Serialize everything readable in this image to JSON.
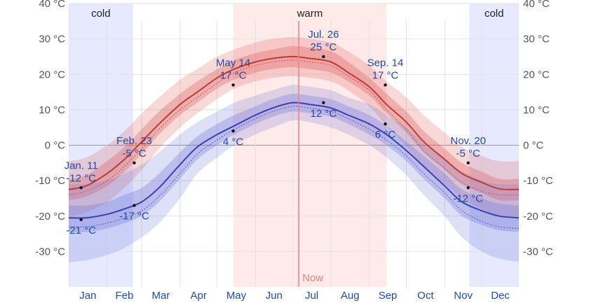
{
  "chart_data": {
    "type": "area",
    "title": "",
    "xlabel": "",
    "ylabel": "",
    "ylim": [
      -40,
      40
    ],
    "y_ticks": [
      -30,
      -20,
      -10,
      0,
      10,
      20,
      30,
      40
    ],
    "y_unit": "°C",
    "months": [
      "Jan",
      "Feb",
      "Mar",
      "Apr",
      "May",
      "Jun",
      "Jul",
      "Aug",
      "Sep",
      "Oct",
      "Nov",
      "Dec"
    ],
    "seasons": [
      {
        "label": "cold",
        "start_day": 1,
        "end_day": 53,
        "color": "#e6e9ff"
      },
      {
        "label": "warm",
        "start_day": 134,
        "end_day": 258,
        "color": "#ffeaea"
      },
      {
        "label": "cold",
        "start_day": 325,
        "end_day": 365,
        "color": "#e6e9ff"
      }
    ],
    "now": {
      "label": "Now",
      "day": 187,
      "color": "#f08080"
    },
    "x_days": [
      1,
      15,
      32,
      46,
      60,
      74,
      91,
      105,
      121,
      135,
      152,
      166,
      182,
      196,
      213,
      227,
      244,
      258,
      274,
      288,
      305,
      319,
      335,
      349,
      365
    ],
    "series": [
      {
        "key": "high",
        "line_color": "#c0393b",
        "band_color": "#d9534f",
        "mean": [
          -12.5,
          -11.5,
          -8,
          -4,
          1,
          6,
          11.5,
          15,
          19,
          21.5,
          23.5,
          24.5,
          25,
          24.5,
          23.5,
          20.5,
          16.5,
          11.5,
          6.5,
          1,
          -4,
          -8,
          -10.5,
          -12.3,
          -12.5
        ],
        "p25": [
          -15.5,
          -14.5,
          -11.5,
          -7.5,
          -2.5,
          3,
          8.5,
          12,
          16,
          18.5,
          20.5,
          21.5,
          22,
          21.5,
          20.5,
          18,
          14,
          9,
          3.5,
          -2,
          -7,
          -11,
          -13.5,
          -15.5,
          -15.5
        ],
        "p75": [
          -9.5,
          -8.5,
          -4.5,
          -0.5,
          4.5,
          9.5,
          14.5,
          18,
          21.5,
          24,
          26,
          27,
          28,
          27.5,
          26.5,
          23.5,
          19,
          14.5,
          9.5,
          4,
          -1,
          -5,
          -7.5,
          -9.5,
          -9.5
        ],
        "p10": [
          -20,
          -19,
          -16,
          -12,
          -7,
          -1,
          5,
          9,
          13,
          16,
          18,
          19,
          19.5,
          19,
          18,
          15.5,
          11,
          5.5,
          -0.5,
          -6,
          -11,
          -15,
          -18,
          -20,
          -20
        ],
        "p90": [
          -4.5,
          -3.5,
          0,
          4,
          9,
          13.5,
          18.5,
          21.5,
          25,
          27,
          29,
          30,
          30.5,
          30,
          29,
          26.5,
          22.5,
          18,
          13.5,
          8.5,
          3.5,
          -0.5,
          -3,
          -4.5,
          -4.5
        ],
        "dotted": [
          -14,
          -13,
          -10,
          -6,
          -1,
          4.5,
          10,
          13.5,
          17.5,
          20.5,
          22.5,
          23.5,
          24,
          23.5,
          22.5,
          19.5,
          15.5,
          10,
          4.5,
          -1.5,
          -6.5,
          -10.5,
          -13,
          -14,
          -14
        ]
      },
      {
        "key": "low",
        "line_color": "#3b3fb6",
        "band_color": "#6a72d6",
        "mean": [
          -20.5,
          -20.5,
          -19.5,
          -18,
          -16,
          -12,
          -5.5,
          -0.5,
          3,
          5.5,
          8.5,
          10.5,
          12,
          11.5,
          10.5,
          8.5,
          6,
          3,
          -1.5,
          -6,
          -11.5,
          -16,
          -18.5,
          -20,
          -20.5
        ],
        "p25": [
          -24.5,
          -24.5,
          -23.5,
          -22,
          -20,
          -16,
          -9.5,
          -4,
          0,
          3,
          6,
          8,
          9.5,
          9,
          8,
          6,
          3,
          0,
          -4.5,
          -9.5,
          -15,
          -20,
          -22.5,
          -24,
          -24.5
        ],
        "p75": [
          -17,
          -17,
          -16,
          -14,
          -12,
          -8,
          -2,
          2.5,
          6,
          8.5,
          11,
          13,
          14.5,
          14,
          13,
          11,
          8.5,
          5.5,
          1,
          -3,
          -8,
          -12.5,
          -15,
          -16.5,
          -17
        ],
        "p10": [
          -33,
          -32.5,
          -31,
          -29,
          -26,
          -22,
          -15,
          -8,
          -3.5,
          0,
          3,
          5,
          7,
          6.5,
          5,
          3,
          0,
          -3.5,
          -8.5,
          -14,
          -20,
          -26,
          -30,
          -32,
          -33
        ],
        "p90": [
          -11,
          -11,
          -10,
          -8,
          -5.5,
          -2,
          3,
          6.5,
          9.5,
          12,
          14,
          15.5,
          17,
          16.5,
          15.5,
          13.5,
          11.5,
          8.5,
          5,
          0.5,
          -4,
          -7.5,
          -10,
          -11,
          -11
        ],
        "dotted": [
          -23,
          -23,
          -22,
          -20.5,
          -18.5,
          -14.5,
          -8,
          -2.5,
          1.5,
          4.5,
          7.5,
          9.5,
          11,
          10.5,
          9.5,
          7.5,
          4.5,
          1.5,
          -3,
          -8,
          -13.5,
          -18.5,
          -21.5,
          -23,
          -23.5
        ]
      }
    ],
    "annotations": [
      {
        "day": 11,
        "value": -12,
        "series": "high",
        "date": "Jan. 11",
        "temp": "-12 °C",
        "position": "above"
      },
      {
        "day": 11,
        "value": -21,
        "series": "low",
        "date": "",
        "temp": "-21 °C",
        "position": "below"
      },
      {
        "day": 54,
        "value": -5,
        "series": "high",
        "date": "Feb. 23",
        "temp": "-5 °C",
        "position": "above"
      },
      {
        "day": 54,
        "value": -17,
        "series": "low",
        "date": "",
        "temp": "-17 °C",
        "position": "below"
      },
      {
        "day": 134,
        "value": 17,
        "series": "high",
        "date": "May 14",
        "temp": "17 °C",
        "position": "above"
      },
      {
        "day": 134,
        "value": 4,
        "series": "low",
        "date": "",
        "temp": "4 °C",
        "position": "below"
      },
      {
        "day": 207,
        "value": 25,
        "series": "high",
        "date": "Jul. 26",
        "temp": "25 °C",
        "position": "above"
      },
      {
        "day": 207,
        "value": 12,
        "series": "low",
        "date": "",
        "temp": "12 °C",
        "position": "below"
      },
      {
        "day": 257,
        "value": 17,
        "series": "high",
        "date": "Sep. 14",
        "temp": "17 °C",
        "position": "above"
      },
      {
        "day": 257,
        "value": 6,
        "series": "low",
        "date": "",
        "temp": "6 °C",
        "position": "below"
      },
      {
        "day": 324,
        "value": -5,
        "series": "high",
        "date": "Nov. 20",
        "temp": "-5 °C",
        "position": "above"
      },
      {
        "day": 324,
        "value": -12,
        "series": "low",
        "date": "",
        "temp": "-12 °C",
        "position": "below"
      }
    ],
    "grid": true
  }
}
